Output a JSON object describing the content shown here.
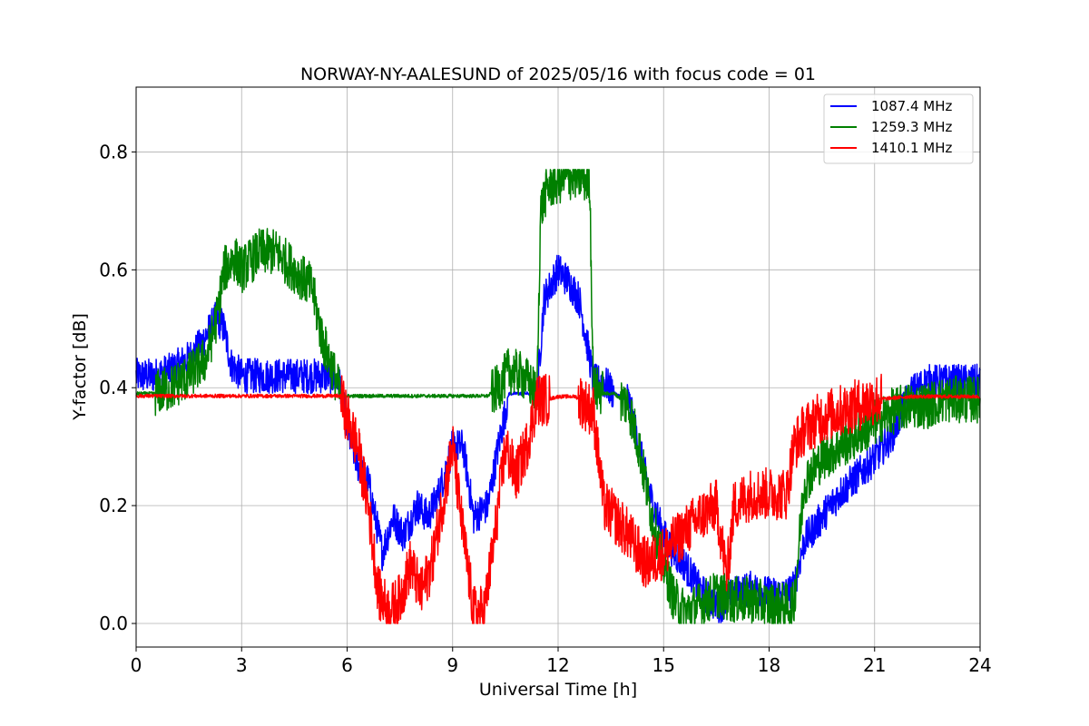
{
  "chart_data": {
    "type": "line",
    "title": "NORWAY-NY-AALESUND of 2025/05/16 with focus code = 01",
    "xlabel": "Universal Time [h]",
    "ylabel": "Y-factor [dB]",
    "xlim": [
      0,
      24
    ],
    "ylim": [
      -0.04,
      0.91
    ],
    "xticks": [
      0,
      3,
      6,
      9,
      12,
      15,
      18,
      21,
      24
    ],
    "xtick_labels": [
      "0",
      "3",
      "6",
      "9",
      "12",
      "15",
      "18",
      "21",
      "24"
    ],
    "yticks": [
      0.0,
      0.2,
      0.4,
      0.6,
      0.8
    ],
    "ytick_labels": [
      "0.0",
      "0.2",
      "0.4",
      "0.6",
      "0.8"
    ],
    "grid": true,
    "legend_position": "top-right",
    "series": [
      {
        "name": "1087.4 MHz",
        "color": "#0000ff",
        "noise": 0.06,
        "x": [
          0,
          0.5,
          1.0,
          1.5,
          1.8,
          2.0,
          2.3,
          2.5,
          2.7,
          3.0,
          3.5,
          4.0,
          4.5,
          5.0,
          5.5,
          5.8,
          6.0,
          6.3,
          6.6,
          7.0,
          7.3,
          7.6,
          8.0,
          8.3,
          8.6,
          9.0,
          9.3,
          9.6,
          10.0,
          10.3,
          10.6,
          11.0,
          11.4,
          11.6,
          12.0,
          12.3,
          12.6,
          12.9,
          13.0,
          13.3,
          13.6,
          14.0,
          14.3,
          14.6,
          15.0,
          15.3,
          15.6,
          16.0,
          16.3,
          16.6,
          17.0,
          17.5,
          18.0,
          18.5,
          18.7,
          19.0,
          19.5,
          20.0,
          20.5,
          21.0,
          21.5,
          22.0,
          22.5,
          23.0,
          23.5,
          24.0
        ],
        "y": [
          0.42,
          0.42,
          0.43,
          0.45,
          0.47,
          0.49,
          0.52,
          0.5,
          0.44,
          0.42,
          0.42,
          0.42,
          0.42,
          0.42,
          0.42,
          0.41,
          0.33,
          0.27,
          0.24,
          0.12,
          0.18,
          0.15,
          0.2,
          0.18,
          0.22,
          0.3,
          0.3,
          0.18,
          0.2,
          0.3,
          0.39,
          0.39,
          0.39,
          0.55,
          0.6,
          0.58,
          0.55,
          0.45,
          0.41,
          0.41,
          0.39,
          0.38,
          0.3,
          0.22,
          0.15,
          0.12,
          0.1,
          0.06,
          0.04,
          0.03,
          0.05,
          0.06,
          0.05,
          0.05,
          0.06,
          0.14,
          0.18,
          0.22,
          0.25,
          0.28,
          0.32,
          0.39,
          0.41,
          0.41,
          0.41,
          0.41
        ]
      },
      {
        "name": "1259.3 MHz",
        "color": "#008000",
        "noise": 0.08,
        "x": [
          0,
          0.5,
          1.0,
          1.5,
          2.0,
          2.3,
          2.5,
          2.8,
          3.0,
          3.5,
          4.0,
          4.5,
          5.0,
          5.3,
          5.6,
          5.8,
          6.0,
          7.0,
          8.0,
          9.0,
          9.5,
          10.0,
          10.3,
          10.6,
          11.0,
          11.4,
          11.5,
          11.7,
          12.0,
          12.5,
          12.9,
          13.0,
          13.3,
          13.6,
          14.0,
          14.3,
          14.6,
          15.0,
          15.3,
          15.6,
          16.0,
          16.5,
          17.0,
          17.5,
          18.0,
          18.5,
          18.7,
          19.0,
          19.5,
          20.0,
          20.5,
          21.0,
          21.5,
          22.0,
          22.5,
          23.0,
          23.5,
          24.0
        ],
        "y": [
          0.39,
          0.39,
          0.4,
          0.42,
          0.45,
          0.52,
          0.6,
          0.62,
          0.6,
          0.63,
          0.63,
          0.6,
          0.57,
          0.48,
          0.43,
          0.39,
          0.386,
          0.386,
          0.386,
          0.386,
          0.386,
          0.386,
          0.4,
          0.43,
          0.42,
          0.39,
          0.7,
          0.74,
          0.75,
          0.76,
          0.75,
          0.4,
          0.39,
          0.39,
          0.37,
          0.3,
          0.2,
          0.1,
          0.04,
          0.02,
          0.03,
          0.05,
          0.04,
          0.04,
          0.03,
          0.03,
          0.03,
          0.24,
          0.28,
          0.3,
          0.32,
          0.34,
          0.36,
          0.37,
          0.37,
          0.38,
          0.38,
          0.38
        ]
      },
      {
        "name": "1410.1 MHz",
        "color": "#ff0000",
        "noise": 0.09,
        "x": [
          0,
          0.5,
          1.0,
          1.5,
          2.0,
          2.5,
          3.0,
          4.0,
          5.0,
          5.8,
          6.0,
          6.3,
          6.6,
          6.9,
          7.2,
          7.5,
          7.8,
          8.1,
          8.4,
          8.7,
          9.0,
          9.3,
          9.6,
          9.9,
          10.2,
          10.5,
          10.8,
          11.1,
          11.4,
          11.7,
          12.0,
          12.5,
          13.0,
          13.3,
          13.6,
          14.0,
          14.5,
          15.0,
          15.5,
          16.0,
          16.5,
          16.8,
          17.0,
          17.5,
          18.0,
          18.5,
          18.7,
          19.0,
          19.5,
          20.0,
          20.5,
          21.0,
          22.0,
          23.0,
          24.0
        ],
        "y": [
          0.386,
          0.386,
          0.386,
          0.386,
          0.386,
          0.386,
          0.386,
          0.386,
          0.386,
          0.386,
          0.35,
          0.3,
          0.2,
          0.05,
          0.02,
          0.04,
          0.1,
          0.05,
          0.1,
          0.2,
          0.3,
          0.15,
          0.02,
          0.02,
          0.15,
          0.3,
          0.25,
          0.3,
          0.38,
          0.38,
          0.385,
          0.385,
          0.36,
          0.2,
          0.18,
          0.15,
          0.1,
          0.12,
          0.15,
          0.18,
          0.2,
          0.08,
          0.2,
          0.22,
          0.22,
          0.22,
          0.3,
          0.33,
          0.35,
          0.36,
          0.37,
          0.38,
          0.385,
          0.385,
          0.385
        ]
      }
    ]
  }
}
